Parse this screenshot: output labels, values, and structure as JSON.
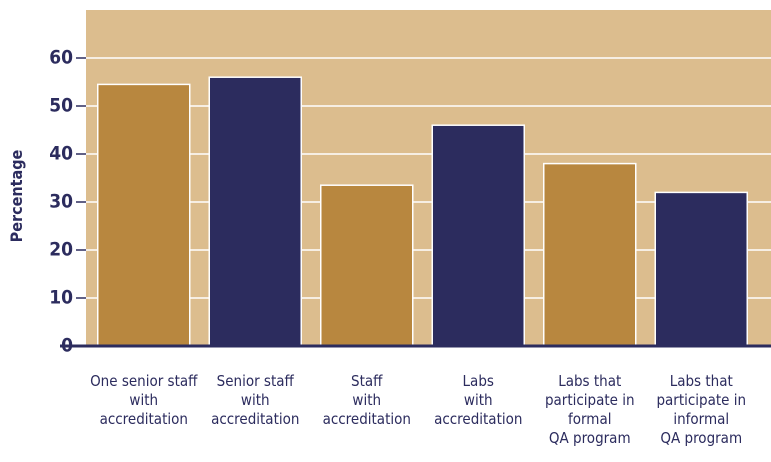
{
  "chart_data": {
    "type": "bar",
    "y_label": "Percentage",
    "categories": [
      "One senior staff\nwith\naccreditation",
      "Senior staff\nwith\naccreditation",
      "Staff\nwith\naccreditation",
      "Labs\nwith\naccreditation",
      "Labs that\nparticipate in\nformal\nQA program",
      "Labs that\nparticipate in\ninformal\nQA program"
    ],
    "values": [
      54.5,
      56,
      33.5,
      46,
      38,
      32
    ],
    "colors": [
      "#b8873f",
      "#2c2c5e",
      "#b8873f",
      "#2c2c5e",
      "#b8873f",
      "#2c2c5e"
    ],
    "background": "#dcbd8e",
    "ylim": [
      0,
      70
    ],
    "yticks": [
      0,
      10,
      20,
      30,
      40,
      50,
      60
    ],
    "grid": true
  }
}
